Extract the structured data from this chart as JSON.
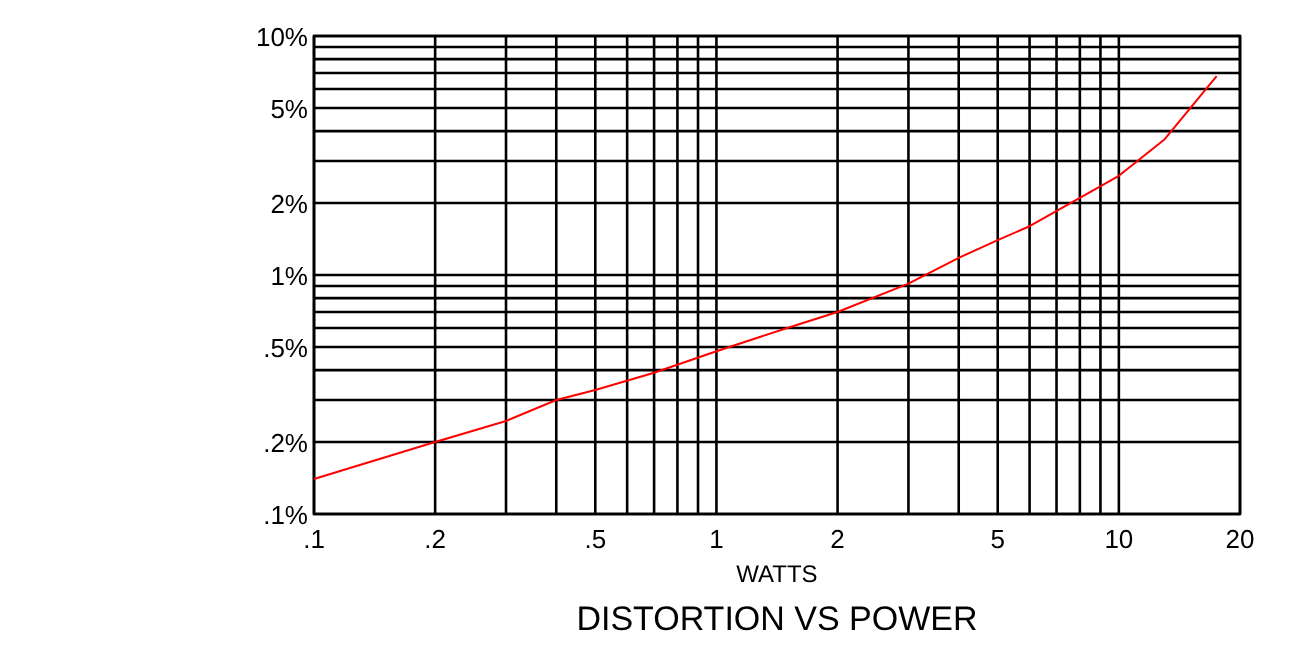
{
  "chart_data": {
    "type": "line",
    "title": "DISTORTION VS POWER",
    "xlabel": "WATTS",
    "log": "xy",
    "grid": true,
    "marker": "none",
    "line_style": "solid",
    "xlim": [
      0.1,
      20
    ],
    "ylim": [
      0.1,
      10
    ],
    "xticks": [
      {
        "value": 0.1,
        "label": ".1"
      },
      {
        "value": 0.2,
        "label": ".2"
      },
      {
        "value": 0.3,
        "label": null
      },
      {
        "value": 0.4,
        "label": null
      },
      {
        "value": 0.5,
        "label": ".5"
      },
      {
        "value": 0.6,
        "label": null
      },
      {
        "value": 0.7,
        "label": null
      },
      {
        "value": 0.8,
        "label": null
      },
      {
        "value": 0.9,
        "label": null
      },
      {
        "value": 1,
        "label": "1"
      },
      {
        "value": 2,
        "label": "2"
      },
      {
        "value": 3,
        "label": null
      },
      {
        "value": 4,
        "label": null
      },
      {
        "value": 5,
        "label": "5"
      },
      {
        "value": 6,
        "label": null
      },
      {
        "value": 7,
        "label": null
      },
      {
        "value": 8,
        "label": null
      },
      {
        "value": 9,
        "label": null
      },
      {
        "value": 10,
        "label": "10"
      },
      {
        "value": 20,
        "label": "20"
      }
    ],
    "yticks": [
      {
        "value": 0.1,
        "label": ".1%"
      },
      {
        "value": 0.2,
        "label": ".2%"
      },
      {
        "value": 0.3,
        "label": null
      },
      {
        "value": 0.4,
        "label": null
      },
      {
        "value": 0.5,
        "label": ".5%"
      },
      {
        "value": 0.6,
        "label": null
      },
      {
        "value": 0.7,
        "label": null
      },
      {
        "value": 0.8,
        "label": null
      },
      {
        "value": 0.9,
        "label": null
      },
      {
        "value": 1,
        "label": "1%"
      },
      {
        "value": 2,
        "label": "2%"
      },
      {
        "value": 3,
        "label": null
      },
      {
        "value": 4,
        "label": null
      },
      {
        "value": 5,
        "label": "5%"
      },
      {
        "value": 6,
        "label": null
      },
      {
        "value": 7,
        "label": null
      },
      {
        "value": 8,
        "label": null
      },
      {
        "value": 9,
        "label": null
      },
      {
        "value": 10,
        "label": "10%"
      }
    ],
    "series": [
      {
        "color": "#ff0000",
        "x": [
          0.1,
          0.2,
          0.3,
          0.4,
          0.5,
          0.7,
          1,
          1.5,
          2,
          3,
          4,
          5,
          6,
          8,
          10,
          13,
          17.5
        ],
        "values": [
          0.14,
          0.2,
          0.245,
          0.3,
          0.33,
          0.39,
          0.48,
          0.6,
          0.7,
          0.92,
          1.18,
          1.4,
          1.6,
          2.1,
          2.6,
          3.7,
          6.8
        ]
      }
    ]
  }
}
